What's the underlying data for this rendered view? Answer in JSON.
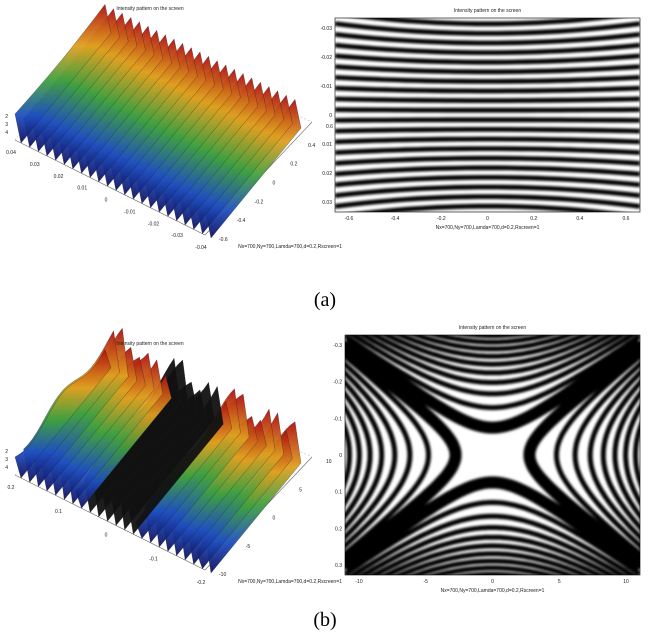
{
  "panels": [
    {
      "surface": {
        "title": "Intensity pattern on the screen",
        "xticks": [
          "0.04",
          "0.03",
          "0.02",
          "0.01",
          "0",
          "-0.01",
          "-0.02",
          "-0.03",
          "-0.04"
        ],
        "yticks": [
          "-0.6",
          "-0.4",
          "-0.2",
          "0",
          "0.2",
          "0.4",
          "0.6"
        ],
        "zticks": [
          "4",
          "3",
          "2"
        ],
        "footer": "Nx=700,Ny=700,Lamda=700,d=0.2,Rscreen=1"
      },
      "fringes": {
        "title": "Intensity pattern on the screen",
        "xticks": [
          "-0.6",
          "-0.4",
          "-0.2",
          "0",
          "0.2",
          "0.4",
          "0.6"
        ],
        "yticks": [
          "-0.03",
          "-0.02",
          "-0.01",
          "0",
          "0.01",
          "0.02",
          "0.03"
        ],
        "footer": "Nx=700,Ny=700,Lamda=700,d=0.2,Rscreen=1"
      },
      "caption": "(a)"
    },
    {
      "surface": {
        "title": "Intensity pattern on the screen",
        "xticks": [
          "0.2",
          "0.1",
          "0",
          "-0.1",
          "-0.2"
        ],
        "yticks": [
          "-10",
          "-5",
          "0",
          "5",
          "10"
        ],
        "zticks": [
          "4",
          "3",
          "2"
        ],
        "footer": "Nx=700,Ny=700,Lamda=700,d=0.2,Rscreen=1"
      },
      "fringes": {
        "title": "Intensity pattern on the screen",
        "xticks": [
          "-10",
          "-5",
          "0",
          "5",
          "10"
        ],
        "yticks": [
          "-0.3",
          "-0.2",
          "-0.1",
          "0",
          "0.1",
          "0.2",
          "0.3"
        ],
        "footer": "Nx=700,Ny=700,Lamda=700,d=0.2,Rscreen=1"
      },
      "caption": "(b)"
    }
  ]
}
